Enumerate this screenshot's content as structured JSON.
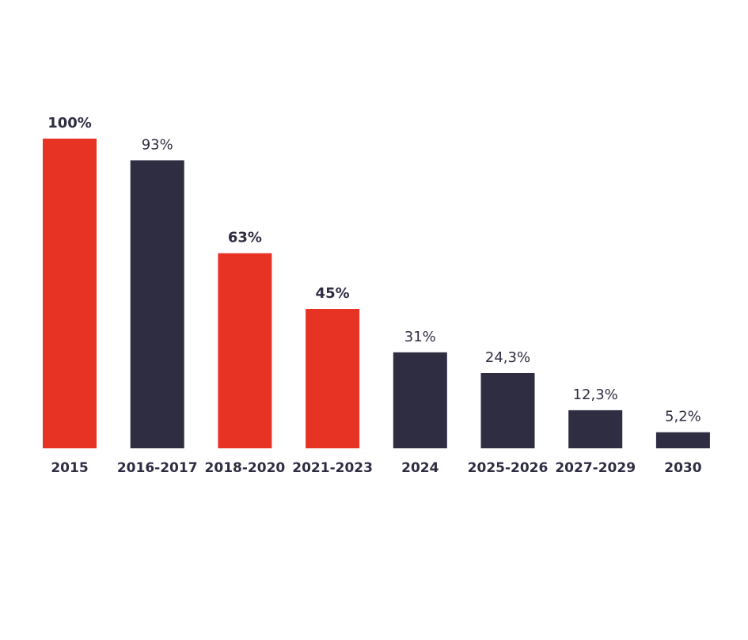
{
  "chart_data": {
    "type": "bar",
    "categories": [
      "2015",
      "2016-2017",
      "2018-2020",
      "2021-2023",
      "2024",
      "2025-2026",
      "2027-2029",
      "2030"
    ],
    "values": [
      100,
      93,
      63,
      45,
      31,
      24.3,
      12.3,
      5.2
    ],
    "value_labels": [
      "100%",
      "93%",
      "63%",
      "45%",
      "31%",
      "24,3%",
      "12,3%",
      "5,2%"
    ],
    "highlighted": [
      true,
      false,
      true,
      true,
      false,
      false,
      false,
      false
    ],
    "ylim": [
      0,
      100
    ],
    "grid": false,
    "title": "",
    "xlabel": "",
    "ylabel": ""
  },
  "colors": {
    "highlight": "#e63323",
    "default": "#2e2d42",
    "label": "#2e2d42"
  }
}
